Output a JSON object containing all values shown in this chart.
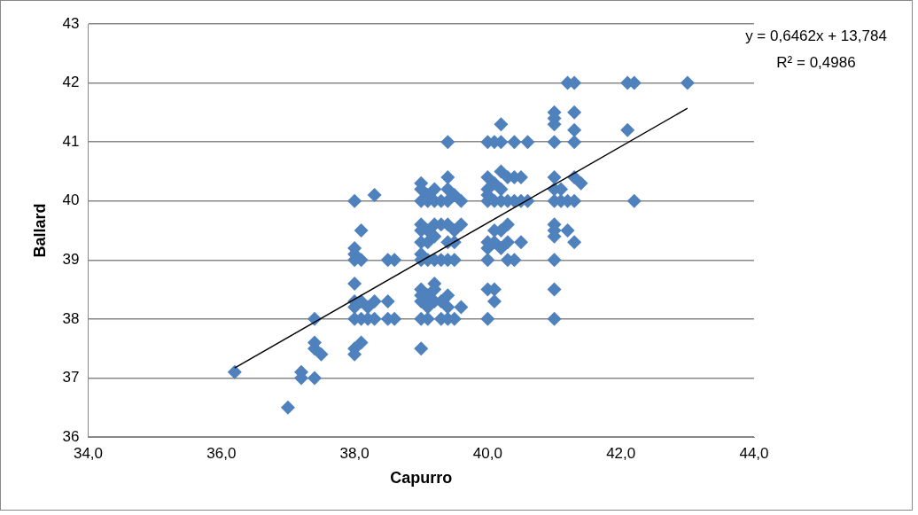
{
  "chart_data": {
    "type": "scatter",
    "xlabel": "Capurro",
    "ylabel": "Ballard",
    "marker": "diamond",
    "grid": "y",
    "xlim": [
      34,
      44
    ],
    "ylim": [
      36,
      43
    ],
    "xticks": [
      {
        "value": 34,
        "label": "34,0"
      },
      {
        "value": 36,
        "label": "36,0"
      },
      {
        "value": 38,
        "label": "38,0"
      },
      {
        "value": 40,
        "label": "40,0"
      },
      {
        "value": 42,
        "label": "42,0"
      },
      {
        "value": 44,
        "label": "44,0"
      }
    ],
    "yticks": [
      36,
      37,
      38,
      39,
      40,
      41,
      42,
      43
    ],
    "annotations": [
      "y = 0,6462x + 13,784",
      "R² = 0,4986"
    ],
    "series": [
      {
        "color": "#4f81bd",
        "x": [
          36.2,
          37.0,
          37.2,
          37.2,
          37.4,
          37.4,
          37.4,
          37.4,
          37.5,
          38.0,
          38.0,
          38.0,
          38.0,
          38.0,
          38.0,
          38.0,
          38.0,
          38.0,
          38.0,
          38.1,
          38.1,
          38.1,
          38.1,
          38.1,
          38.2,
          38.2,
          38.3,
          38.3,
          38.3,
          38.5,
          38.5,
          38.5,
          38.6,
          38.6,
          39.0,
          39.0,
          39.0,
          39.0,
          39.0,
          39.0,
          39.0,
          39.0,
          39.0,
          39.0,
          39.0,
          39.0,
          39.0,
          39.1,
          39.1,
          39.1,
          39.1,
          39.1,
          39.1,
          39.1,
          39.1,
          39.2,
          39.2,
          39.2,
          39.2,
          39.2,
          39.2,
          39.2,
          39.2,
          39.3,
          39.3,
          39.3,
          39.3,
          39.3,
          39.4,
          39.4,
          39.4,
          39.4,
          39.4,
          39.4,
          39.4,
          39.4,
          39.4,
          39.4,
          39.5,
          39.5,
          39.5,
          39.5,
          39.5,
          39.6,
          39.6,
          39.6,
          40.0,
          40.0,
          40.0,
          40.0,
          40.0,
          40.0,
          40.0,
          40.0,
          40.0,
          40.0,
          40.1,
          40.1,
          40.1,
          40.1,
          40.1,
          40.1,
          40.1,
          40.2,
          40.2,
          40.2,
          40.2,
          40.2,
          40.2,
          40.2,
          40.3,
          40.3,
          40.3,
          40.3,
          40.3,
          40.4,
          40.4,
          40.4,
          40.4,
          40.5,
          40.5,
          40.5,
          40.6,
          40.6,
          41.0,
          41.0,
          41.0,
          41.0,
          41.0,
          41.0,
          41.0,
          41.0,
          41.0,
          41.0,
          41.0,
          41.0,
          41.0,
          41.1,
          41.1,
          41.2,
          41.2,
          41.2,
          41.3,
          41.3,
          41.3,
          41.3,
          41.3,
          41.3,
          41.3,
          41.4,
          42.1,
          42.1,
          42.2,
          42.2,
          43.0
        ],
        "values": [
          37.1,
          36.5,
          37.1,
          37.0,
          37.0,
          38.0,
          37.6,
          37.5,
          37.4,
          40.0,
          39.2,
          39.1,
          39.0,
          38.6,
          38.3,
          38.2,
          38.0,
          37.5,
          37.4,
          39.5,
          39.0,
          38.3,
          38.0,
          37.6,
          38.0,
          38.2,
          40.1,
          38.3,
          38.0,
          39.0,
          38.3,
          38.0,
          39.0,
          38.0,
          40.3,
          40.2,
          40.0,
          39.6,
          39.5,
          39.3,
          39.1,
          39.0,
          38.5,
          38.4,
          38.3,
          38.0,
          37.5,
          40.1,
          40.0,
          39.5,
          39.3,
          39.0,
          38.4,
          38.2,
          38.0,
          40.2,
          40.0,
          39.6,
          39.4,
          39.0,
          38.6,
          38.5,
          38.3,
          40.0,
          39.6,
          39.0,
          38.3,
          38.0,
          41.0,
          40.4,
          40.2,
          40.0,
          39.6,
          39.3,
          39.0,
          38.4,
          38.2,
          38.0,
          40.1,
          39.5,
          39.3,
          39.0,
          38.0,
          40.0,
          39.6,
          38.2,
          41.0,
          40.4,
          40.2,
          40.1,
          40.0,
          39.3,
          39.2,
          39.0,
          38.5,
          38.0,
          41.0,
          40.3,
          40.0,
          39.5,
          39.3,
          38.5,
          38.3,
          41.3,
          41.0,
          40.5,
          40.2,
          40.0,
          39.5,
          39.2,
          40.4,
          40.0,
          39.6,
          39.3,
          39.0,
          41.0,
          40.4,
          40.0,
          39.0,
          40.4,
          40.0,
          39.3,
          41.0,
          40.0,
          41.5,
          41.4,
          41.3,
          41.0,
          40.4,
          40.2,
          40.0,
          39.6,
          39.5,
          39.4,
          39.0,
          38.5,
          38.0,
          40.2,
          40.0,
          42.0,
          40.0,
          39.5,
          42.0,
          41.5,
          41.2,
          41.0,
          40.4,
          40.0,
          39.3,
          40.3,
          42.0,
          41.2,
          42.0,
          40.0,
          42.0
        ]
      },
      {
        "type": "line",
        "color": "#000000",
        "marker": "none",
        "x": [
          36.2,
          43.0
        ],
        "values": [
          37.17,
          41.57
        ]
      }
    ]
  }
}
